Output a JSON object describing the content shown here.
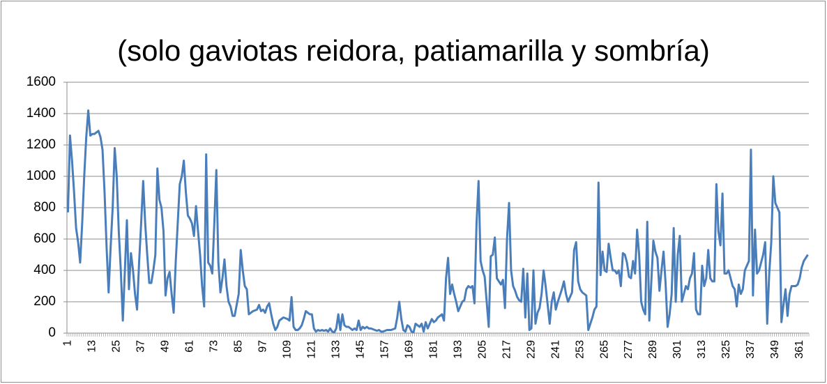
{
  "chart_data": {
    "type": "line",
    "title": "(solo gaviotas reidora, patiamarilla y sombría)",
    "categories": [
      "1",
      null,
      null,
      null,
      null,
      null,
      null,
      null,
      null,
      null,
      null,
      null,
      "13",
      null,
      null,
      null,
      null,
      null,
      null,
      null,
      null,
      null,
      null,
      null,
      "25",
      null,
      null,
      null,
      null,
      null,
      null,
      null,
      null,
      null,
      null,
      null,
      "37",
      null,
      null,
      null,
      null,
      null,
      null,
      null,
      null,
      null,
      null,
      null,
      "49",
      null,
      null,
      null,
      null,
      null,
      null,
      null,
      null,
      null,
      null,
      null,
      "61",
      null,
      null,
      null,
      null,
      null,
      null,
      null,
      null,
      null,
      null,
      null,
      "73",
      null,
      null,
      null,
      null,
      null,
      null,
      null,
      null,
      null,
      null,
      null,
      "85",
      null,
      null,
      null,
      null,
      null,
      null,
      null,
      null,
      null,
      null,
      null,
      "97",
      null,
      null,
      null,
      null,
      null,
      null,
      null,
      null,
      null,
      null,
      null,
      "109",
      null,
      null,
      null,
      null,
      null,
      null,
      null,
      null,
      null,
      null,
      null,
      "121",
      null,
      null,
      null,
      null,
      null,
      null,
      null,
      null,
      null,
      null,
      null,
      "133",
      null,
      null,
      null,
      null,
      null,
      null,
      null,
      null,
      null,
      null,
      null,
      "145",
      null,
      null,
      null,
      null,
      null,
      null,
      null,
      null,
      null,
      null,
      null,
      "157",
      null,
      null,
      null,
      null,
      null,
      null,
      null,
      null,
      null,
      null,
      null,
      "169",
      null,
      null,
      null,
      null,
      null,
      null,
      null,
      null,
      null,
      null,
      null,
      "181",
      null,
      null,
      null,
      null,
      null,
      null,
      null,
      null,
      null,
      null,
      null,
      "193",
      null,
      null,
      null,
      null,
      null,
      null,
      null,
      null,
      null,
      null,
      null,
      "205",
      null,
      null,
      null,
      null,
      null,
      null,
      null,
      null,
      null,
      null,
      null,
      "217",
      null,
      null,
      null,
      null,
      null,
      null,
      null,
      null,
      null,
      null,
      null,
      "229",
      null,
      null,
      null,
      null,
      null,
      null,
      null,
      null,
      null,
      null,
      null,
      "241",
      null,
      null,
      null,
      null,
      null,
      null,
      null,
      null,
      null,
      null,
      null,
      "253",
      null,
      null,
      null,
      null,
      null,
      null,
      null,
      null,
      null,
      null,
      null,
      "265",
      null,
      null,
      null,
      null,
      null,
      null,
      null,
      null,
      null,
      null,
      null,
      "277",
      null,
      null,
      null,
      null,
      null,
      null,
      null,
      null,
      null,
      null,
      null,
      "289",
      null,
      null,
      null,
      null,
      null,
      null,
      null,
      null,
      null,
      null,
      null,
      "301",
      null,
      null,
      null,
      null,
      null,
      null,
      null,
      null,
      null,
      null,
      null,
      "313",
      null,
      null,
      null,
      null,
      null,
      null,
      null,
      null,
      null,
      null,
      null,
      "325",
      null,
      null,
      null,
      null,
      null,
      null,
      null,
      null,
      null,
      null,
      null,
      "337",
      null,
      null,
      null,
      null,
      null,
      null,
      null,
      null,
      null,
      null,
      null,
      "349",
      null,
      null,
      null,
      null,
      null,
      null,
      null,
      null,
      null,
      null,
      null,
      "361",
      null,
      null,
      null,
      null
    ],
    "values": [
      770,
      1260,
      1100,
      900,
      670,
      580,
      450,
      700,
      1000,
      1250,
      1420,
      1260,
      1270,
      1270,
      1280,
      1290,
      1250,
      1170,
      900,
      550,
      260,
      550,
      800,
      1180,
      1000,
      650,
      400,
      80,
      400,
      720,
      280,
      510,
      400,
      250,
      150,
      450,
      700,
      970,
      700,
      500,
      320,
      320,
      400,
      500,
      1050,
      850,
      800,
      650,
      240,
      350,
      390,
      250,
      130,
      450,
      700,
      950,
      1000,
      1100,
      900,
      750,
      730,
      700,
      620,
      810,
      650,
      500,
      300,
      170,
      1140,
      450,
      430,
      380,
      700,
      1040,
      450,
      260,
      350,
      470,
      300,
      200,
      170,
      110,
      110,
      180,
      250,
      530,
      400,
      300,
      280,
      120,
      130,
      140,
      145,
      150,
      180,
      140,
      150,
      130,
      170,
      190,
      120,
      60,
      20,
      40,
      80,
      90,
      100,
      95,
      90,
      80,
      230,
      40,
      20,
      20,
      30,
      50,
      90,
      140,
      130,
      120,
      120,
      30,
      10,
      20,
      15,
      20,
      15,
      20,
      10,
      30,
      10,
      5,
      30,
      120,
      20,
      120,
      50,
      40,
      40,
      30,
      20,
      30,
      20,
      80,
      20,
      40,
      30,
      40,
      30,
      30,
      25,
      20,
      15,
      20,
      10,
      10,
      15,
      20,
      20,
      20,
      25,
      30,
      100,
      200,
      90,
      20,
      10,
      50,
      40,
      10,
      5,
      60,
      50,
      40,
      60,
      10,
      70,
      30,
      60,
      90,
      70,
      80,
      100,
      110,
      120,
      80,
      350,
      480,
      250,
      310,
      250,
      200,
      140,
      170,
      200,
      210,
      280,
      300,
      290,
      300,
      190,
      700,
      970,
      460,
      400,
      360,
      200,
      40,
      490,
      500,
      610,
      350,
      330,
      310,
      340,
      160,
      600,
      830,
      400,
      300,
      270,
      230,
      210,
      200,
      410,
      100,
      380,
      20,
      30,
      400,
      60,
      130,
      160,
      250,
      400,
      300,
      180,
      60,
      200,
      260,
      150,
      200,
      240,
      280,
      330,
      250,
      200,
      230,
      260,
      530,
      580,
      330,
      280,
      260,
      250,
      240,
      20,
      60,
      100,
      150,
      170,
      960,
      370,
      520,
      400,
      390,
      570,
      480,
      400,
      400,
      380,
      400,
      300,
      510,
      500,
      450,
      360,
      350,
      460,
      380,
      660,
      500,
      200,
      150,
      120,
      710,
      80,
      330,
      590,
      520,
      480,
      270,
      400,
      520,
      320,
      40,
      120,
      250,
      670,
      200,
      500,
      620,
      200,
      250,
      300,
      280,
      350,
      380,
      510,
      150,
      120,
      120,
      430,
      300,
      350,
      530,
      350,
      330,
      330,
      950,
      650,
      560,
      890,
      380,
      380,
      400,
      350,
      300,
      280,
      170,
      310,
      250,
      280,
      400,
      430,
      460,
      1170,
      240,
      660,
      380,
      400,
      450,
      500,
      580,
      60,
      380,
      580,
      1000,
      830,
      800,
      770,
      70,
      180,
      280,
      110,
      250,
      300,
      300,
      300,
      310,
      350,
      420,
      460,
      480,
      500
    ],
    "color": "#4a7ebb",
    "ylim": [
      0,
      1600
    ],
    "yticks": [
      0,
      200,
      400,
      600,
      800,
      1000,
      1200,
      1400,
      1600
    ],
    "grid": true
  }
}
